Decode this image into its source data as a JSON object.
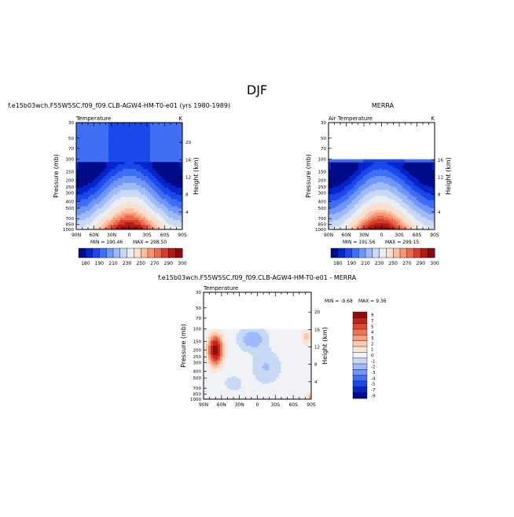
{
  "page_title": "DJF",
  "colors": {
    "scale_abs": [
      "#000b89",
      "#0524c9",
      "#1a48ea",
      "#3f6ef5",
      "#6f97f8",
      "#9ebaf8",
      "#c8d9f6",
      "#ebeef2",
      "#f8e0cf",
      "#fbbe9f",
      "#f79473",
      "#ea6a4c",
      "#d63d2c",
      "#b21a17",
      "#860c0d"
    ],
    "scale_diff": [
      "#000b89",
      "#0524c9",
      "#1a48ea",
      "#3f6ef5",
      "#6f97f8",
      "#9ebaf8",
      "#c8d9f6",
      "#f0f2f6",
      "#f8e6d8",
      "#fbc9ab",
      "#f7a07c",
      "#ee7550",
      "#dc4830",
      "#c0241b",
      "#8f0d0d"
    ]
  },
  "chart_data": [
    {
      "type": "heatmap",
      "title": "f.e15b03wch.F55W5SC.f09_f09.CLB-AGW4-HM-T0-e01 (yrs 1980-1989)",
      "subtitle_left": "Temperature",
      "subtitle_right": "K",
      "xlabel": "",
      "ylabel": "Pressure (mb)",
      "ylabel_right": "Height (km)",
      "x_ticks": [
        "90N",
        "60N",
        "30N",
        "0",
        "30S",
        "60S",
        "90S"
      ],
      "y_ticks": [
        "30",
        "50",
        "70",
        "100",
        "150",
        "200",
        "250",
        "300",
        "400",
        "500",
        "700",
        "850",
        "1000"
      ],
      "y2_ticks": [
        "20",
        "16",
        "12",
        "8",
        "4"
      ],
      "min_label": "MIN = 190.46",
      "max_label": "MAX = 298.50",
      "min": 190.46,
      "max": 298.5,
      "colorbar_labels": [
        "180",
        "190",
        "210",
        "230",
        "250",
        "270",
        "290",
        "300"
      ],
      "data_top_mb": 30
    },
    {
      "type": "heatmap",
      "title": "MERRA",
      "subtitle_left": "Air Temperature",
      "subtitle_right": "K",
      "xlabel": "",
      "ylabel": "Pressure (mb)",
      "ylabel_right": "Height (km)",
      "x_ticks": [
        "90N",
        "60N",
        "30N",
        "0",
        "30S",
        "60S",
        "90S"
      ],
      "y_ticks": [
        "30",
        "50",
        "70",
        "100",
        "150",
        "200",
        "250",
        "300",
        "400",
        "500",
        "700",
        "850",
        "1000"
      ],
      "y2_ticks": [
        "16",
        "12",
        "8",
        "4"
      ],
      "min_label": "MIN = 191.56",
      "max_label": "MAX = 299.15",
      "min": 191.56,
      "max": 299.15,
      "colorbar_labels": [
        "180",
        "190",
        "210",
        "230",
        "250",
        "270",
        "290",
        "300"
      ],
      "data_top_mb": 100
    },
    {
      "type": "heatmap",
      "title": "f.e15b03wch.F55W5SC.f09_f09.CLB-AGW4-HM-T0-e01 - MERRA",
      "subtitle_left": "Temperature",
      "subtitle_right": "",
      "xlabel": "",
      "ylabel": "Pressure (mb)",
      "ylabel_right": "Height (km)",
      "x_ticks": [
        "90N",
        "60N",
        "30N",
        "0",
        "30S",
        "60S",
        "90S"
      ],
      "y_ticks": [
        "30",
        "50",
        "70",
        "100",
        "150",
        "200",
        "250",
        "300",
        "400",
        "500",
        "700",
        "850",
        "1000"
      ],
      "y2_ticks": [
        "20",
        "16",
        "12",
        "8",
        "4"
      ],
      "min_label": "MIN = -9.68",
      "max_label": "MAX = 9.36",
      "min": -9.68,
      "max": 9.36,
      "colorbar_labels": [
        "9",
        "7",
        "5",
        "4",
        "3",
        "2",
        "1",
        "0",
        "-1",
        "-2",
        "-3",
        "-4",
        "-5",
        "-7",
        "-9"
      ],
      "data_top_mb": 100
    }
  ]
}
